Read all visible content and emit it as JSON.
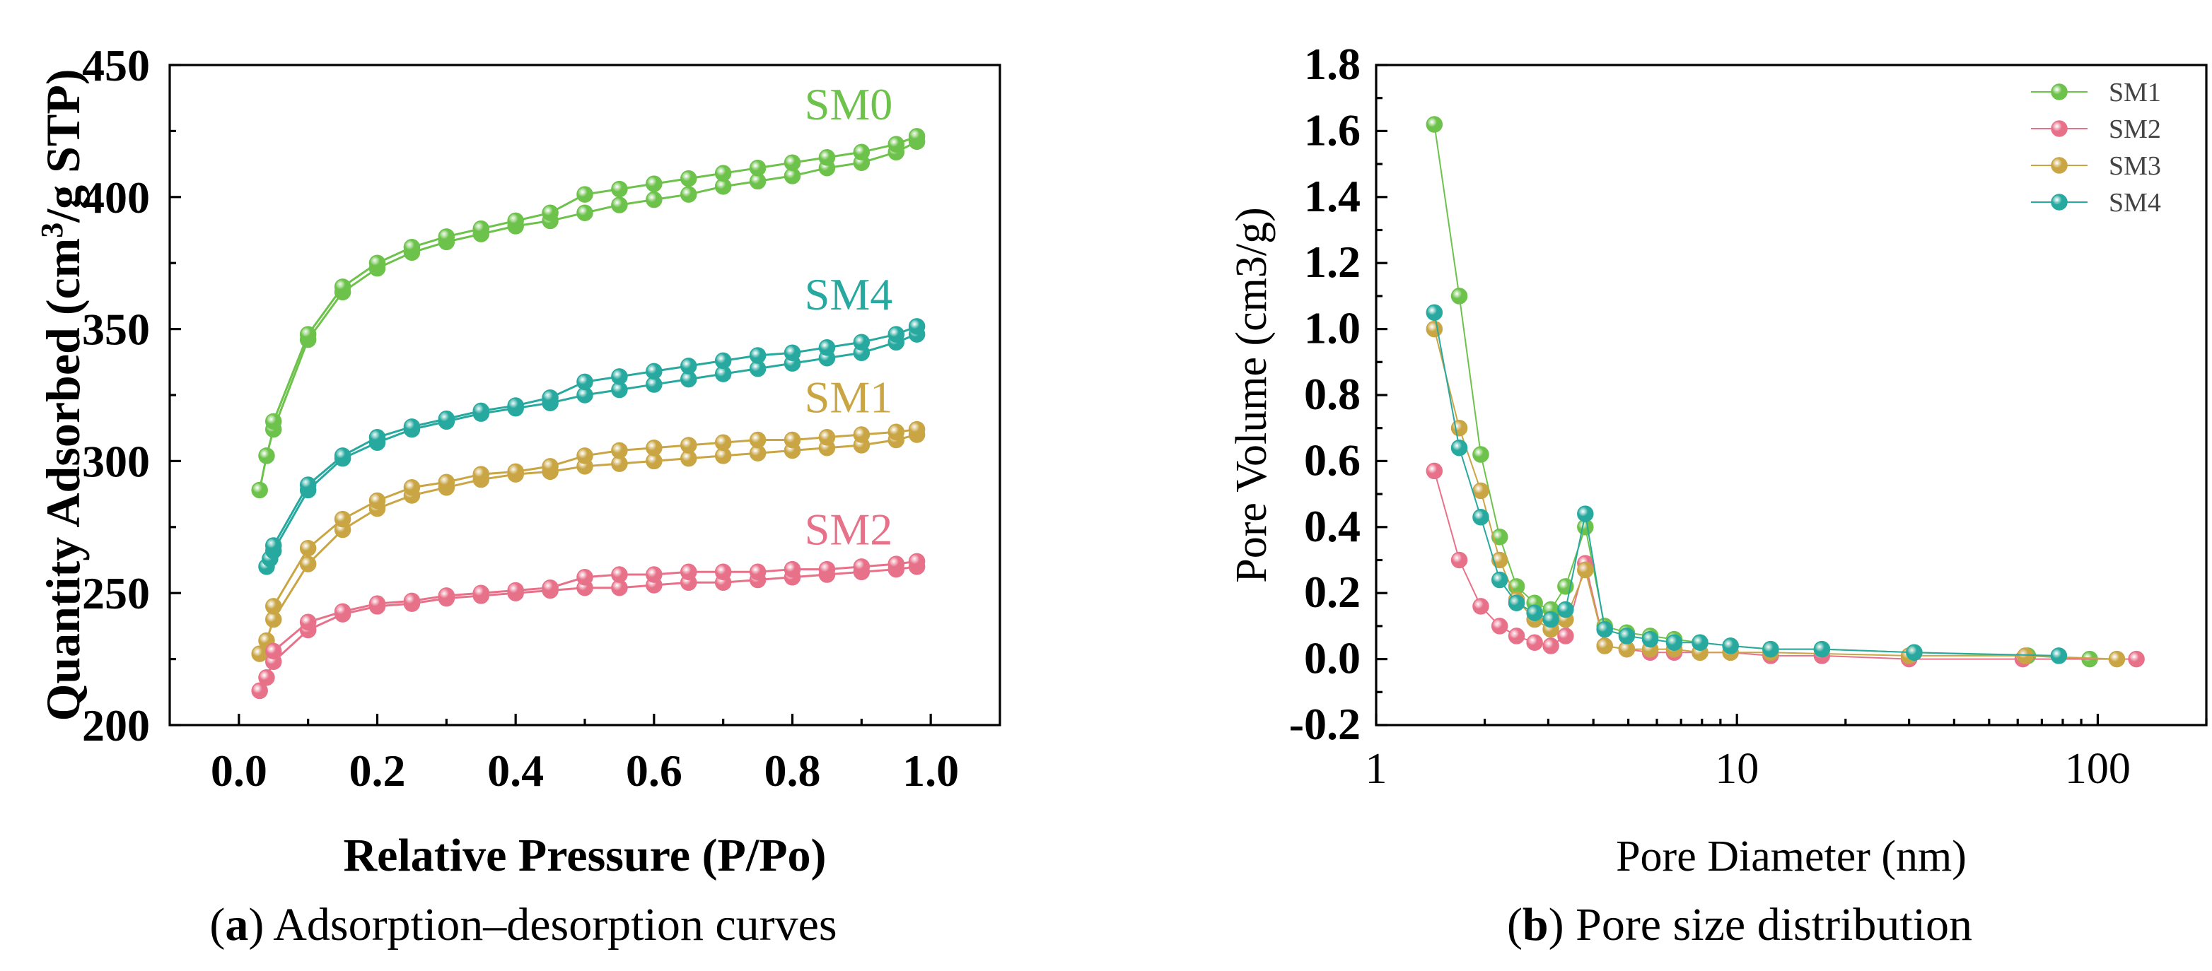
{
  "chart_data": [
    {
      "type": "line",
      "panel": "a",
      "caption_letter": "a",
      "caption_text": "Adsorption–desorption curves",
      "xlabel": "Relative Pressure (P/Po)",
      "ylabel_pre": "Quantity Adsorbed (cm",
      "ylabel_sup": "3",
      "ylabel_post": "/g STP)",
      "xlim": [
        -0.1,
        1.1
      ],
      "ylim": [
        200,
        450
      ],
      "xticks": [
        0.0,
        0.2,
        0.4,
        0.6,
        0.8,
        1.0
      ],
      "xtick_labels": [
        "0.0",
        "0.2",
        "0.4",
        "0.6",
        "0.8",
        "1.0"
      ],
      "yticks": [
        200,
        250,
        300,
        350,
        400,
        450
      ],
      "ytick_labels": [
        "200",
        "250",
        "300",
        "350",
        "400",
        "450"
      ],
      "series": [
        {
          "name": "SM0",
          "color": "#6cc24a",
          "adsorption": {
            "x": [
              0.03,
              0.04,
              0.05,
              0.1,
              0.15,
              0.2,
              0.25,
              0.3,
              0.35,
              0.4,
              0.45,
              0.5,
              0.55,
              0.6,
              0.65,
              0.7,
              0.75,
              0.8,
              0.85,
              0.9,
              0.95,
              0.98
            ],
            "y": [
              289,
              302,
              312,
              346,
              364,
              373,
              379,
              383,
              386,
              389,
              391,
              394,
              397,
              399,
              401,
              404,
              406,
              408,
              411,
              413,
              417,
              421
            ]
          },
          "desorption": {
            "x": [
              0.05,
              0.1,
              0.15,
              0.2,
              0.25,
              0.3,
              0.35,
              0.4,
              0.45,
              0.5,
              0.55,
              0.6,
              0.65,
              0.7,
              0.75,
              0.8,
              0.85,
              0.9,
              0.95,
              0.98
            ],
            "y": [
              315,
              348,
              366,
              375,
              381,
              385,
              388,
              391,
              394,
              401,
              403,
              405,
              407,
              409,
              411,
              413,
              415,
              417,
              420,
              423
            ]
          }
        },
        {
          "name": "SM4",
          "color": "#27a99f",
          "adsorption": {
            "x": [
              0.04,
              0.045,
              0.05,
              0.1,
              0.15,
              0.2,
              0.25,
              0.3,
              0.35,
              0.4,
              0.45,
              0.5,
              0.55,
              0.6,
              0.65,
              0.7,
              0.75,
              0.8,
              0.85,
              0.9,
              0.95,
              0.98
            ],
            "y": [
              260,
              263,
              266,
              289,
              301,
              307,
              312,
              315,
              318,
              320,
              322,
              325,
              327,
              329,
              331,
              333,
              335,
              337,
              339,
              341,
              345,
              348
            ]
          },
          "desorption": {
            "x": [
              0.05,
              0.1,
              0.15,
              0.2,
              0.25,
              0.3,
              0.35,
              0.4,
              0.45,
              0.5,
              0.55,
              0.6,
              0.65,
              0.7,
              0.75,
              0.8,
              0.85,
              0.9,
              0.95,
              0.98
            ],
            "y": [
              268,
              291,
              302,
              309,
              313,
              316,
              319,
              321,
              324,
              330,
              332,
              334,
              336,
              338,
              340,
              341,
              343,
              345,
              348,
              351
            ]
          }
        },
        {
          "name": "SM1",
          "color": "#c9a544",
          "adsorption": {
            "x": [
              0.03,
              0.04,
              0.05,
              0.1,
              0.15,
              0.2,
              0.25,
              0.3,
              0.35,
              0.4,
              0.45,
              0.5,
              0.55,
              0.6,
              0.65,
              0.7,
              0.75,
              0.8,
              0.85,
              0.9,
              0.95,
              0.98
            ],
            "y": [
              227,
              232,
              240,
              261,
              274,
              282,
              287,
              290,
              293,
              295,
              296,
              298,
              299,
              300,
              301,
              302,
              303,
              304,
              305,
              306,
              308,
              310
            ]
          },
          "desorption": {
            "x": [
              0.05,
              0.1,
              0.15,
              0.2,
              0.25,
              0.3,
              0.35,
              0.4,
              0.45,
              0.5,
              0.55,
              0.6,
              0.65,
              0.7,
              0.75,
              0.8,
              0.85,
              0.9,
              0.95,
              0.98
            ],
            "y": [
              245,
              267,
              278,
              285,
              290,
              292,
              295,
              296,
              298,
              302,
              304,
              305,
              306,
              307,
              308,
              308,
              309,
              310,
              311,
              312
            ]
          }
        },
        {
          "name": "SM2",
          "color": "#e8718a",
          "adsorption": {
            "x": [
              0.03,
              0.04,
              0.05,
              0.1,
              0.15,
              0.2,
              0.25,
              0.3,
              0.35,
              0.4,
              0.45,
              0.5,
              0.55,
              0.6,
              0.65,
              0.7,
              0.75,
              0.8,
              0.85,
              0.9,
              0.95,
              0.98
            ],
            "y": [
              213,
              218,
              224,
              236,
              242,
              245,
              246,
              248,
              249,
              250,
              251,
              252,
              252,
              253,
              254,
              254,
              255,
              256,
              257,
              258,
              259,
              260
            ]
          },
          "desorption": {
            "x": [
              0.05,
              0.1,
              0.15,
              0.2,
              0.25,
              0.3,
              0.35,
              0.4,
              0.45,
              0.5,
              0.55,
              0.6,
              0.65,
              0.7,
              0.75,
              0.8,
              0.85,
              0.9,
              0.95,
              0.98
            ],
            "y": [
              228,
              239,
              243,
              246,
              247,
              249,
              250,
              251,
              252,
              256,
              257,
              257,
              258,
              258,
              258,
              259,
              259,
              260,
              261,
              262
            ]
          }
        }
      ]
    },
    {
      "type": "line",
      "panel": "b",
      "caption_letter": "b",
      "caption_text": "Pore size distribution",
      "xlabel": "Pore Diameter (nm)",
      "ylabel": "Pore Volume (cm3/g)",
      "xscale": "log",
      "xlim": [
        1,
        200
      ],
      "ylim": [
        -0.2,
        1.8
      ],
      "xticks": [
        1,
        10,
        100
      ],
      "xtick_labels": [
        "1",
        "10",
        "100"
      ],
      "yticks": [
        -0.2,
        0.0,
        0.2,
        0.4,
        0.6,
        0.8,
        1.0,
        1.2,
        1.4,
        1.6,
        1.8
      ],
      "ytick_labels": [
        "-0.2",
        "0.0",
        "0.2",
        "0.4",
        "0.6",
        "0.8",
        "1.0",
        "1.2",
        "1.4",
        "1.6",
        "1.8"
      ],
      "legend_position": "top-right",
      "series": [
        {
          "name": "SM1",
          "color": "#6cc24a",
          "x": [
            1.45,
            1.7,
            1.95,
            2.2,
            2.45,
            2.75,
            3.05,
            3.35,
            3.8,
            4.3,
            4.95,
            5.75,
            6.7,
            7.9,
            9.6,
            12.4,
            17.2,
            31,
            64,
            95
          ],
          "y": [
            1.62,
            1.1,
            0.62,
            0.37,
            0.22,
            0.17,
            0.15,
            0.22,
            0.4,
            0.1,
            0.08,
            0.07,
            0.06,
            0.05,
            0.04,
            0.03,
            0.03,
            0.02,
            0.01,
            0.0
          ]
        },
        {
          "name": "SM2",
          "color": "#e8718a",
          "x": [
            1.45,
            1.7,
            1.95,
            2.2,
            2.45,
            2.75,
            3.05,
            3.35,
            3.8,
            4.3,
            4.95,
            5.75,
            6.7,
            7.9,
            9.6,
            12.4,
            17.2,
            30,
            62,
            128
          ],
          "y": [
            0.57,
            0.3,
            0.16,
            0.1,
            0.07,
            0.05,
            0.04,
            0.07,
            0.29,
            0.04,
            0.03,
            0.02,
            0.02,
            0.02,
            0.02,
            0.01,
            0.01,
            0.0,
            0.0,
            0.0
          ]
        },
        {
          "name": "SM3",
          "color": "#c9a544",
          "x": [
            1.45,
            1.7,
            1.95,
            2.2,
            2.45,
            2.75,
            3.05,
            3.35,
            3.8,
            4.3,
            4.95,
            5.75,
            6.7,
            7.9,
            9.6,
            12.4,
            30,
            63,
            113
          ],
          "y": [
            1.0,
            0.7,
            0.51,
            0.3,
            0.18,
            0.12,
            0.09,
            0.12,
            0.27,
            0.04,
            0.03,
            0.03,
            0.03,
            0.02,
            0.02,
            0.02,
            0.01,
            0.01,
            0.0
          ]
        },
        {
          "name": "SM4",
          "color": "#27a99f",
          "x": [
            1.45,
            1.7,
            1.95,
            2.2,
            2.45,
            2.75,
            3.05,
            3.35,
            3.8,
            4.3,
            4.95,
            5.75,
            6.7,
            7.9,
            9.6,
            12.4,
            17.2,
            31,
            78
          ],
          "y": [
            1.05,
            0.64,
            0.43,
            0.24,
            0.17,
            0.14,
            0.12,
            0.15,
            0.44,
            0.09,
            0.07,
            0.06,
            0.05,
            0.05,
            0.04,
            0.03,
            0.03,
            0.02,
            0.01
          ]
        }
      ]
    }
  ]
}
